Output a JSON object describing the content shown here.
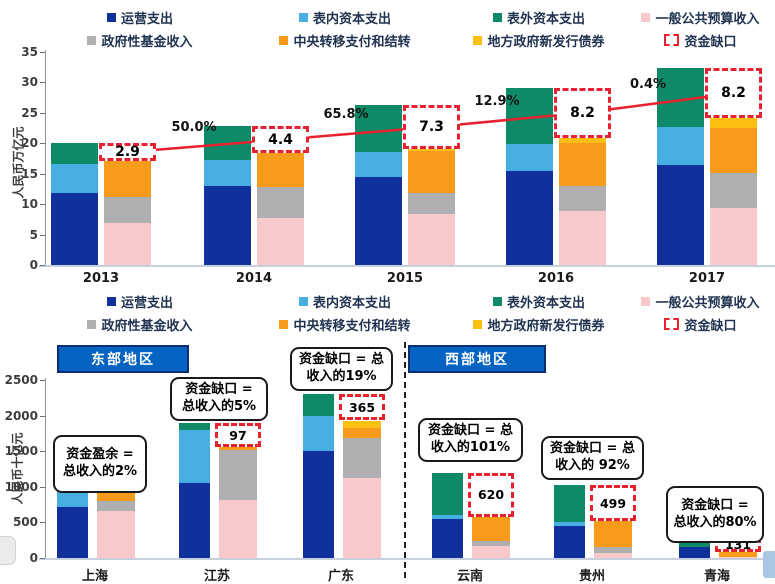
{
  "colors": {
    "darkblue": "#10309C",
    "lightblue": "#47AEE2",
    "green": "#0E8A68",
    "pink": "#F9C8CB",
    "gray": "#AFAFB2",
    "orange": "#F89B1C",
    "yellow": "#FDBF12",
    "red": "#E8212F",
    "header_blue": "#0563C1",
    "header_border": "#0B2E6F"
  },
  "legend": {
    "items": [
      {
        "label": "运营支出",
        "color": "darkblue"
      },
      {
        "label": "表内资本支出",
        "color": "lightblue"
      },
      {
        "label": "表外资本支出",
        "color": "green"
      },
      {
        "label": "一般公共预算收入",
        "color": "pink"
      },
      {
        "label": "政府性基金收入",
        "color": "gray"
      },
      {
        "label": "中央转移支付和结转",
        "color": "orange"
      },
      {
        "label": "地方政府新发行债券",
        "color": "yellow"
      },
      {
        "label": "资金缺口",
        "color": "red",
        "style": "dashed"
      }
    ]
  },
  "chart_data": [
    {
      "id": "national-funding-gap",
      "type": "bar",
      "ylabel": "人民币万亿元",
      "ylim": [
        0,
        35
      ],
      "ytick_step": 5,
      "categories": [
        "2013",
        "2014",
        "2015",
        "2016",
        "2017"
      ],
      "series_expenditure": [
        {
          "name": "运营支出",
          "color": "darkblue",
          "values": [
            11.9,
            12.9,
            14.5,
            15.4,
            16.4
          ]
        },
        {
          "name": "表内资本支出",
          "color": "lightblue",
          "values": [
            4.7,
            4.4,
            4.1,
            4.5,
            6.3
          ]
        },
        {
          "name": "表外资本支出",
          "color": "green",
          "values": [
            3.4,
            5.5,
            7.7,
            9.2,
            9.6
          ]
        }
      ],
      "series_revenue": [
        {
          "name": "一般公共预算收入",
          "color": "pink",
          "values": [
            6.9,
            7.7,
            8.3,
            8.9,
            9.4
          ]
        },
        {
          "name": "政府性基金收入",
          "color": "gray",
          "values": [
            4.2,
            5.1,
            3.6,
            4.1,
            5.7
          ]
        },
        {
          "name": "中央转移支付和结转",
          "color": "orange",
          "values": [
            6.0,
            5.6,
            6.9,
            7.0,
            7.4
          ]
        },
        {
          "name": "地方政府新发行债券",
          "color": "yellow",
          "values": [
            0,
            0,
            0.2,
            0.9,
            1.6
          ]
        }
      ],
      "gap": {
        "name": "资金缺口",
        "values": [
          2.9,
          4.4,
          7.3,
          8.2,
          8.2
        ],
        "growth_labels": [
          "50.0%",
          "65.8%",
          "12.9%",
          "0.4%"
        ]
      }
    },
    {
      "id": "province-funding-gap",
      "type": "bar",
      "ylabel": "人民币十亿元",
      "ylim": [
        0,
        2500
      ],
      "ytick_step": 500,
      "region_groups": [
        {
          "label": "东部地区",
          "provinces": [
            "上海",
            "江苏",
            "广东"
          ]
        },
        {
          "label": "西部地区",
          "provinces": [
            "云南",
            "贵州",
            "青海"
          ]
        }
      ],
      "categories": [
        "上海",
        "江苏",
        "广东",
        "云南",
        "贵州",
        "青海"
      ],
      "series_expenditure": [
        {
          "name": "运营支出",
          "color": "darkblue",
          "values": [
            720,
            1050,
            1500,
            550,
            450,
            150
          ]
        },
        {
          "name": "表内资本支出",
          "color": "lightblue",
          "values": [
            220,
            750,
            500,
            60,
            60,
            0
          ]
        },
        {
          "name": "表外资本支出",
          "color": "green",
          "values": [
            0,
            90,
            300,
            590,
            510,
            140
          ]
        }
      ],
      "series_revenue": [
        {
          "name": "一般公共预算收入",
          "color": "pink",
          "values": [
            660,
            820,
            1130,
            165,
            75,
            15
          ]
        },
        {
          "name": "政府性基金收入",
          "color": "gray",
          "values": [
            140,
            700,
            550,
            75,
            85,
            0
          ]
        },
        {
          "name": "中央转移支付和结转",
          "color": "orange",
          "values": [
            120,
            160,
            150,
            340,
            360,
            135
          ]
        },
        {
          "name": "地方政府新发行债券",
          "color": "yellow",
          "values": [
            40,
            110,
            100,
            0,
            0,
            0
          ]
        }
      ],
      "gap_values": [
        null,
        97,
        365,
        620,
        499,
        131
      ],
      "annotations": [
        "资金盈余 = 总收入的2%",
        "资金缺口 = 总收入的5%",
        "资金缺口 = 总收入的19%",
        "资金缺口 = 总收入的101%",
        "资金缺口 = 总收入的 92%",
        "资金缺口 = 总收入的80%"
      ]
    }
  ]
}
